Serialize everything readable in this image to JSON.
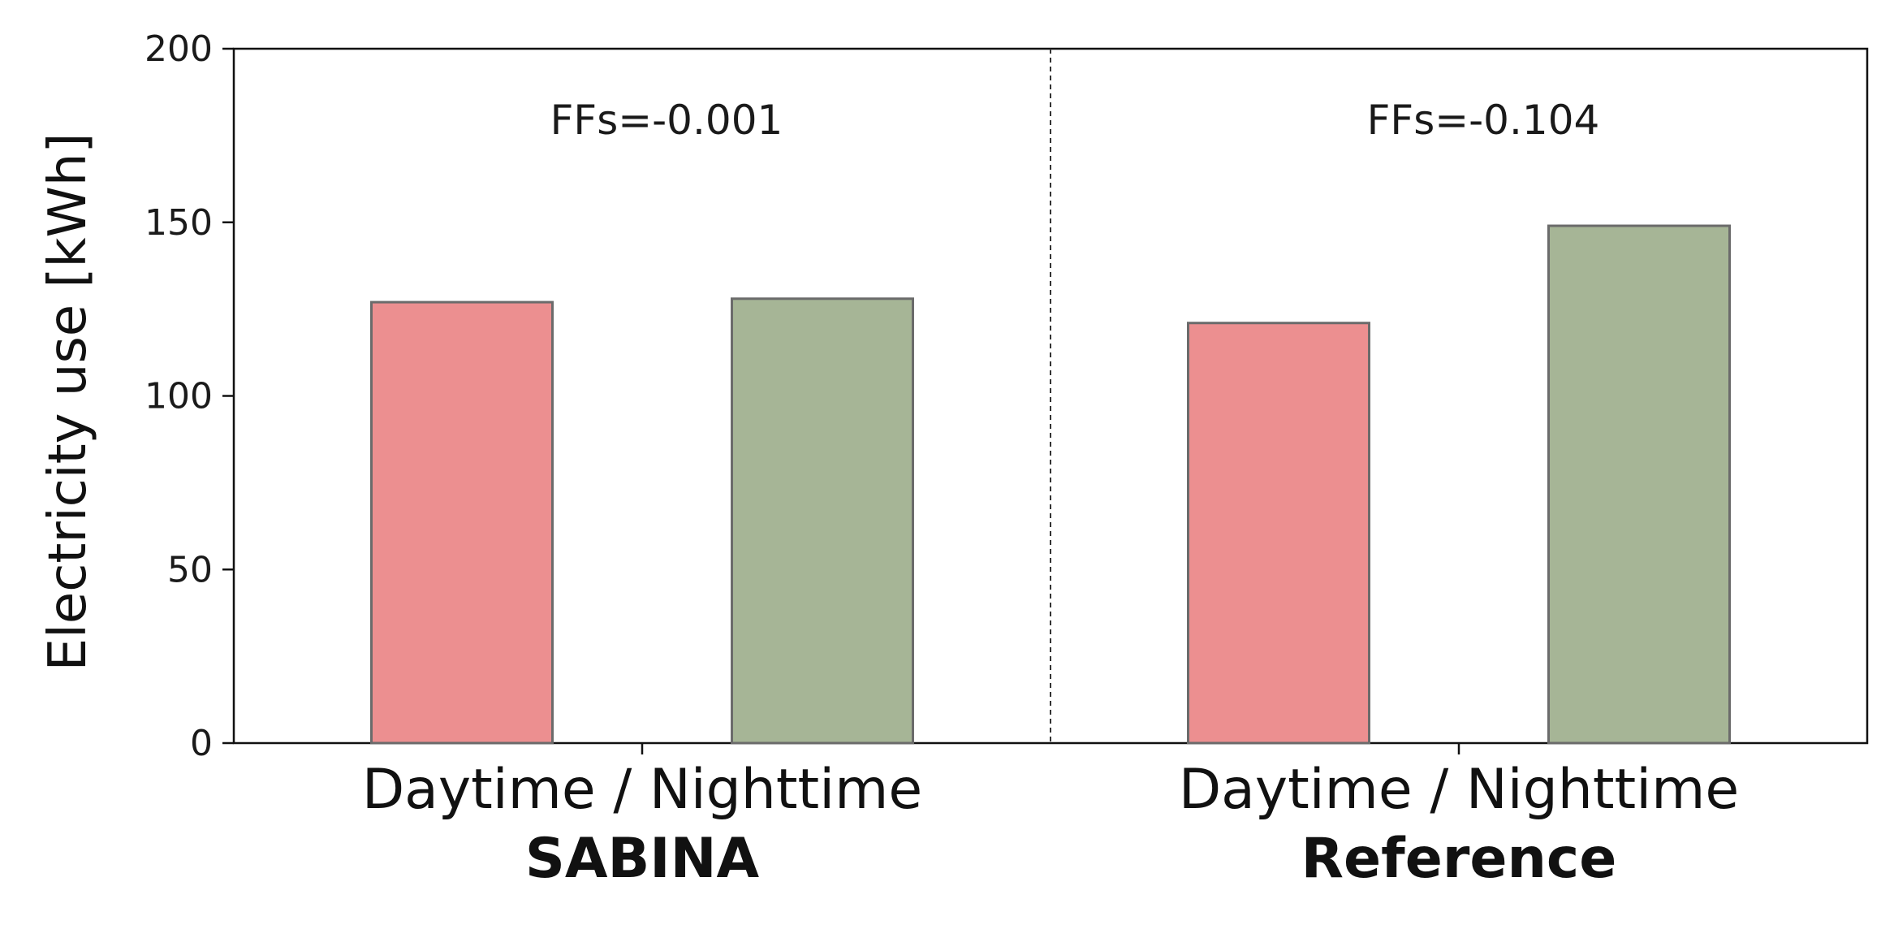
{
  "chart_data": {
    "type": "bar",
    "ylabel": "Electricity use [kWh]",
    "ylim": [
      0,
      200
    ],
    "yticks": [
      0,
      50,
      100,
      150,
      200
    ],
    "grid": false,
    "groups": [
      {
        "name": "SABINA",
        "tick_label": "Daytime / Nighttime",
        "annotation": "FFs=-0.001",
        "bars": [
          {
            "category": "Daytime",
            "value": 127,
            "color": "#ec8f90"
          },
          {
            "category": "Nighttime",
            "value": 128,
            "color": "#a6b596"
          }
        ]
      },
      {
        "name": "Reference",
        "tick_label": "Daytime / Nighttime",
        "annotation": "FFs=-0.104",
        "bars": [
          {
            "category": "Daytime",
            "value": 121,
            "color": "#ec8f90"
          },
          {
            "category": "Nighttime",
            "value": 149,
            "color": "#a6b596"
          }
        ]
      }
    ],
    "separator": "dashed vertical line between groups"
  }
}
